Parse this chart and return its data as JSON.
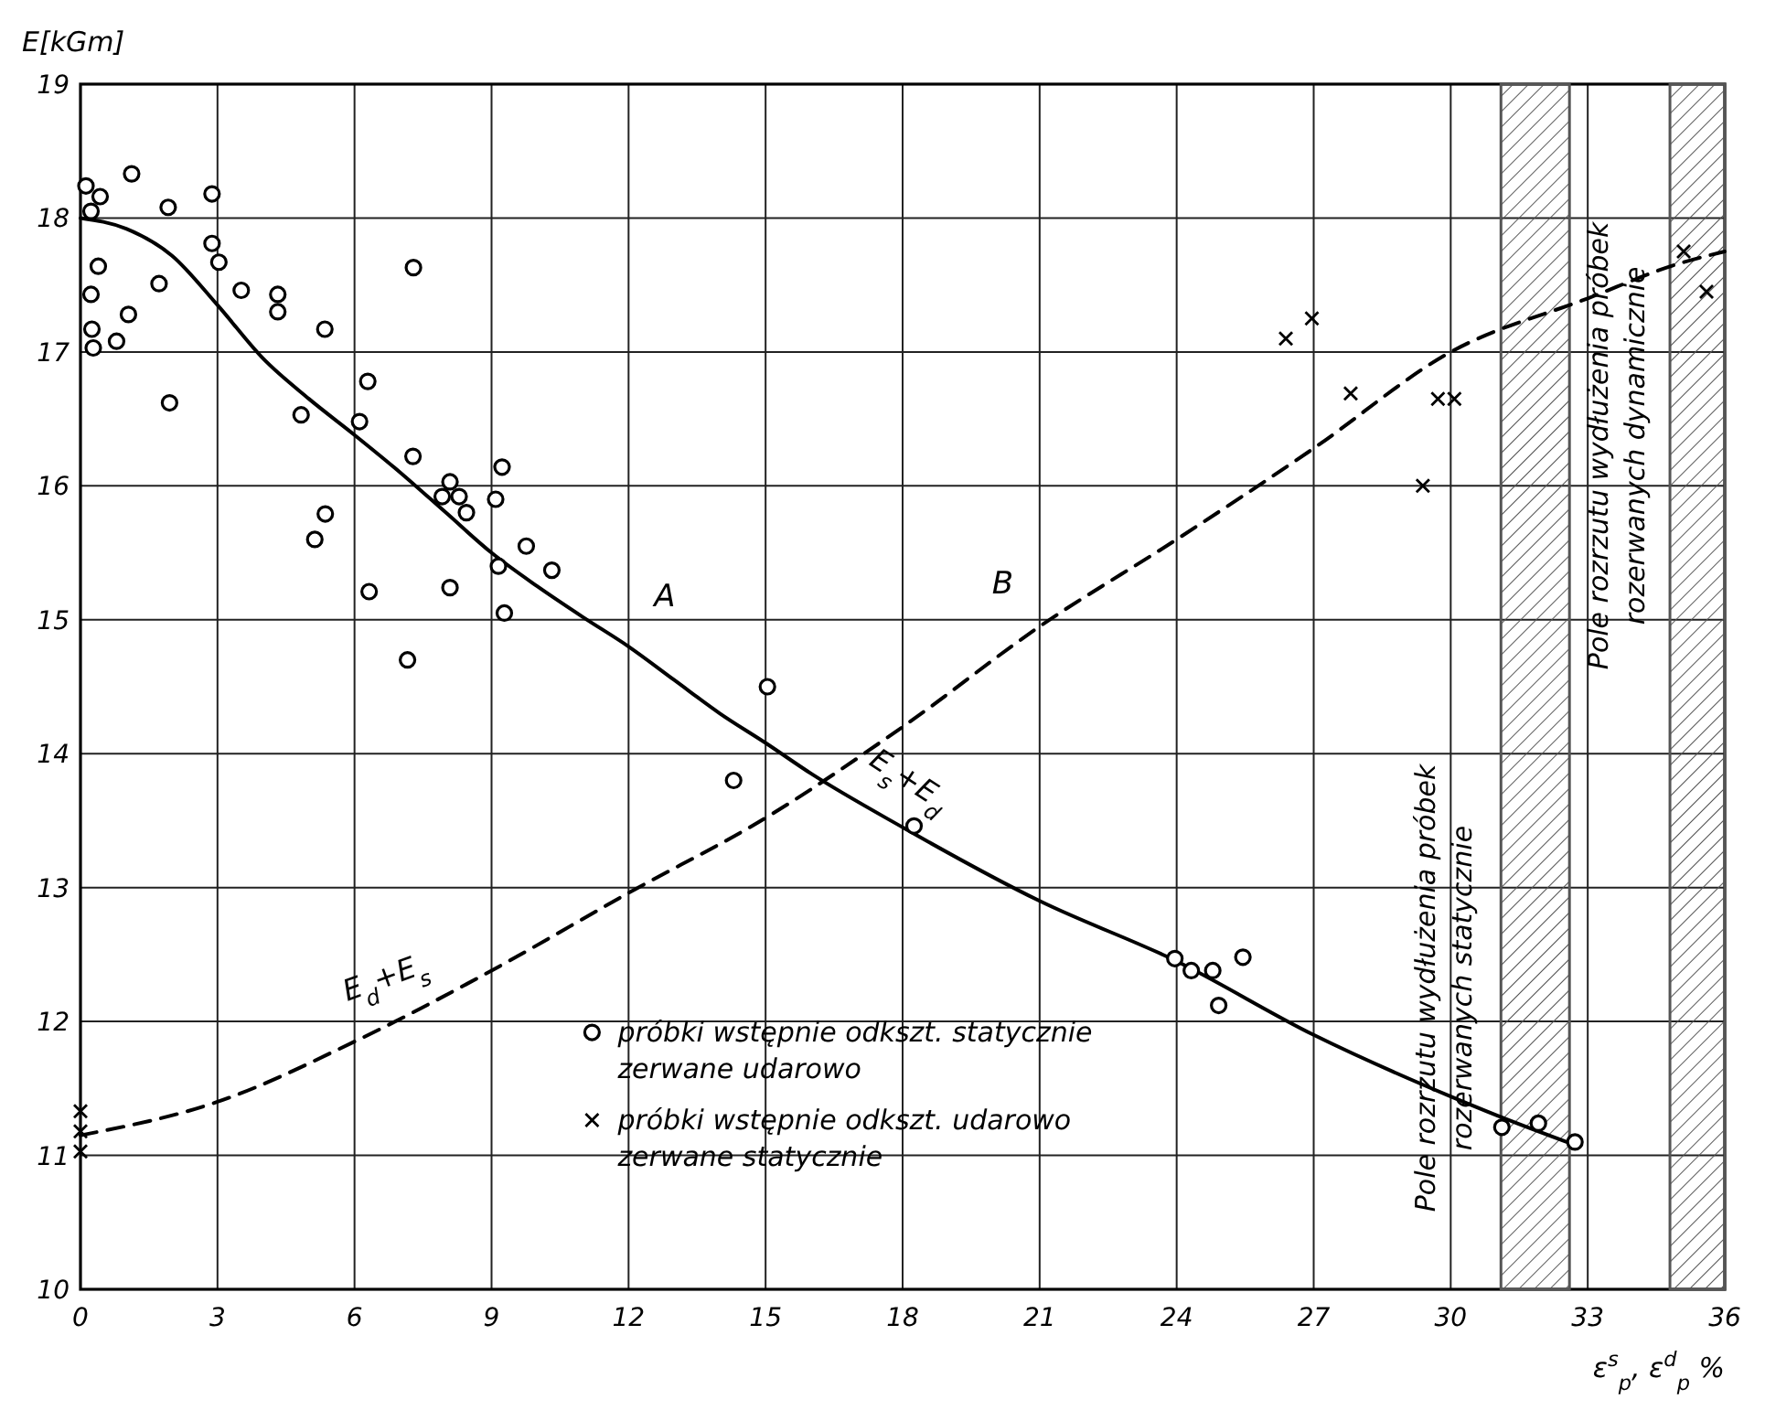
{
  "chart_data": {
    "type": "scatter",
    "ylabel": "E[kGm]",
    "xlabel": "ε$^{s}$$_{p}$, ε$^{d}$$_{p}$ %",
    "xlim": [
      0,
      36
    ],
    "xticks": [
      0,
      3,
      6,
      9,
      12,
      15,
      18,
      21,
      24,
      27,
      30,
      33,
      36
    ],
    "ylim": [
      10,
      19
    ],
    "yticks": [
      10,
      11,
      12,
      13,
      14,
      15,
      16,
      17,
      18,
      19
    ],
    "grid": true,
    "legend": "bottom",
    "series": [
      {
        "type": "line",
        "name": "A",
        "color": "#000000",
        "marker": "none",
        "line_style": "solid",
        "x": [
          0,
          1,
          2,
          3,
          4,
          5,
          6,
          7,
          8,
          9,
          10,
          11,
          12,
          13,
          14,
          15,
          16,
          18,
          21,
          24,
          27,
          30,
          31,
          32.7
        ],
        "values": [
          18,
          17.92,
          17.72,
          17.35,
          16.95,
          16.65,
          16.38,
          16.1,
          15.8,
          15.5,
          15.25,
          15.02,
          14.8,
          14.55,
          14.3,
          14.08,
          13.85,
          13.45,
          12.9,
          12.45,
          11.9,
          11.44,
          11.3,
          11.08
        ]
      },
      {
        "type": "line",
        "name": "B",
        "color": "#000000",
        "marker": "none",
        "line_style": "dashed",
        "x": [
          0,
          3,
          6,
          9,
          12,
          15,
          18,
          21,
          24,
          27,
          30,
          33,
          35,
          36
        ],
        "values": [
          11.15,
          11.4,
          11.85,
          12.38,
          12.96,
          13.52,
          14.2,
          14.95,
          15.6,
          16.28,
          17.0,
          17.4,
          17.66,
          17.75
        ]
      },
      {
        "name": "próbki wstępnie odkszt. statycznie zerwane udarowo",
        "color": "#000000",
        "marker": "circle",
        "x": [
          0.12,
          0.43,
          0.23,
          1.12,
          1.92,
          2.88,
          0.39,
          0.23,
          1.72,
          1.05,
          0.25,
          0.28,
          0.79,
          1.95,
          2.88,
          3.03,
          3.52,
          4.32,
          4.32,
          5.35,
          7.29,
          6.29,
          4.83,
          6.11,
          7.28,
          5.36,
          5.13,
          6.32,
          8.09,
          8.29,
          7.92,
          8.45,
          8.09,
          7.16,
          9.23,
          9.09,
          9.15,
          9.28,
          9.76,
          10.32,
          15.04,
          14.3,
          18.25,
          23.96,
          24.32,
          24.79,
          24.92,
          25.45,
          31.12,
          31.92,
          32.72
        ],
        "values": [
          18.24,
          18.16,
          18.05,
          18.33,
          18.08,
          18.18,
          17.64,
          17.43,
          17.51,
          17.28,
          17.17,
          17.03,
          17.08,
          16.62,
          17.81,
          17.67,
          17.46,
          17.43,
          17.3,
          17.17,
          17.63,
          16.78,
          16.53,
          16.48,
          16.22,
          15.79,
          15.6,
          15.21,
          16.03,
          15.92,
          15.92,
          15.8,
          15.24,
          14.7,
          16.14,
          15.9,
          15.4,
          15.05,
          15.55,
          15.37,
          14.5,
          13.8,
          13.46,
          12.47,
          12.38,
          12.38,
          12.12,
          12.48,
          11.21,
          11.24,
          11.1
        ]
      },
      {
        "name": "próbki wstępnie odkszt. udarowo zerwane statycznie",
        "color": "#000000",
        "marker": "cross",
        "x": [
          0,
          0,
          0,
          26.39,
          26.96,
          27.81,
          29.72,
          30.08,
          29.39,
          35.1,
          35.6
        ],
        "values": [
          11.33,
          11.18,
          11.03,
          17.1,
          17.25,
          16.69,
          16.65,
          16.65,
          16.0,
          17.75,
          17.45
        ]
      }
    ],
    "bands": [
      {
        "axis": "x",
        "from": 31.1,
        "to": 32.6,
        "label": "Pole rozrzutu wydłużenia próbek rozerwanych statycznie",
        "color": "#555555"
      },
      {
        "axis": "x",
        "from": 34.8,
        "to": 36,
        "label": "Pole rozrzutu wydłużenia próbek rozerwanych dynamicznie",
        "color": "#555555"
      }
    ],
    "annotations": [
      "E$_{s}$+E$_{d}$",
      "E$_{d}$+E$_{s}$"
    ]
  }
}
